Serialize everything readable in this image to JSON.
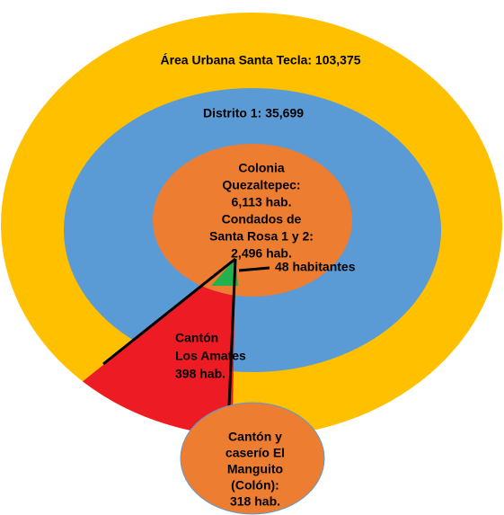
{
  "urban_area": {
    "label": "Área Urbana Santa Tecla: 103,375"
  },
  "district": {
    "label": "Distrito 1: 35,699"
  },
  "colonia": {
    "lines": [
      "Colonia",
      "Quezaltepec:",
      "6,113 hab.",
      "Condados de",
      "Santa Rosa 1 y 2:",
      "2,496 hab."
    ]
  },
  "small_area": {
    "label": "48 habitantes"
  },
  "canton_amates": {
    "lines": [
      "Cantón",
      "Los Amates",
      "398 hab."
    ]
  },
  "canton_manguito": {
    "lines": [
      "Cantón y",
      "caserío El",
      "Manguito",
      "(Colón):",
      "318 hab."
    ]
  }
}
